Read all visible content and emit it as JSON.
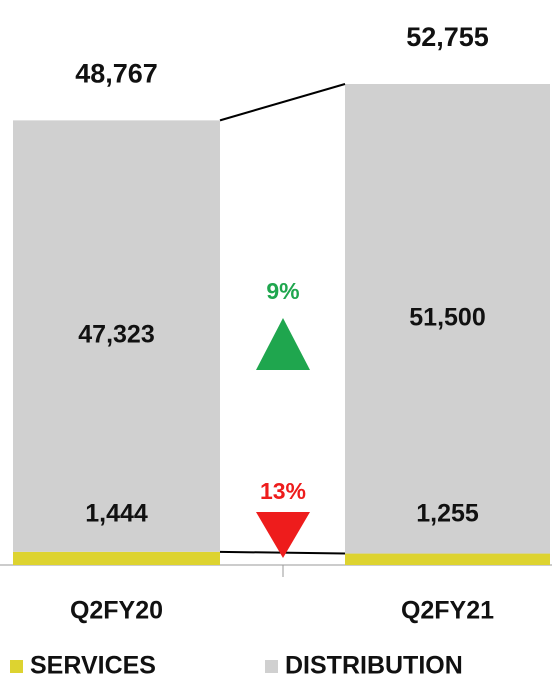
{
  "chart_data": {
    "type": "bar",
    "stacked": true,
    "categories": [
      "Q2FY20",
      "Q2FY21"
    ],
    "series": [
      {
        "name": "SERVICES",
        "color": "#ddd330",
        "values": [
          1444,
          1255
        ],
        "value_labels": [
          "1,444",
          "1,255"
        ]
      },
      {
        "name": "DISTRIBUTION",
        "color": "#d0d0d0",
        "values": [
          47323,
          51500
        ],
        "value_labels": [
          "47,323",
          "51,500"
        ]
      }
    ],
    "totals": {
      "values": [
        48767,
        52755
      ],
      "value_labels": [
        "48,767",
        "52,755"
      ]
    },
    "annotations": [
      {
        "label": "9%",
        "value": 9,
        "direction": "up",
        "color": "#1fa64e"
      },
      {
        "label": "13%",
        "value": 13,
        "direction": "down",
        "color": "#ee1c1c"
      }
    ]
  }
}
